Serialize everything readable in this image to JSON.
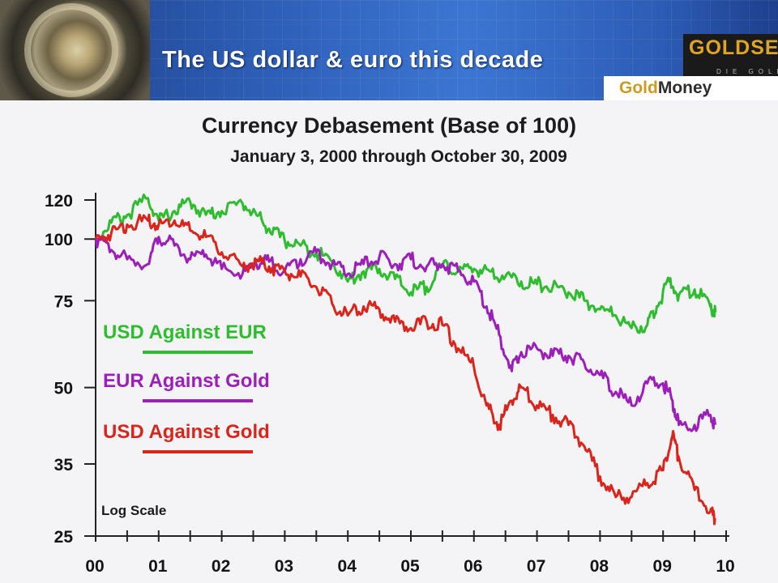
{
  "banner": {
    "title": "The US dollar & euro this decade",
    "logo_top": "GOLDSEEK",
    "logo_sub": "DIE GOLD",
    "logo_gold": "Gold",
    "logo_money": "Money"
  },
  "chart_data": {
    "type": "line",
    "title": "Currency Debasement (Base of 100)",
    "subtitle": "January 3, 2000 through October 30, 2009",
    "xlabel": "",
    "ylabel": "",
    "y_scale": "log",
    "annotation": "Log Scale",
    "xlim": [
      2000,
      2010
    ],
    "x_ticks": [
      2000,
      2001,
      2002,
      2003,
      2004,
      2005,
      2006,
      2007,
      2008,
      2009,
      2010
    ],
    "x_tick_labels": [
      "00",
      "01",
      "02",
      "03",
      "04",
      "05",
      "06",
      "07",
      "08",
      "09",
      "10"
    ],
    "y_ticks": [
      25,
      35,
      50,
      75,
      100,
      120
    ],
    "ylim": [
      25,
      128
    ],
    "grid": false,
    "legend_position": "left",
    "series": [
      {
        "name": "USD Against EUR",
        "color": "#2ebd2e",
        "x": [
          2000.0,
          2000.25,
          2000.5,
          2000.83,
          2001.0,
          2001.25,
          2001.5,
          2001.75,
          2002.0,
          2002.33,
          2002.55,
          2002.75,
          2003.0,
          2003.25,
          2003.5,
          2003.75,
          2004.0,
          2004.25,
          2004.5,
          2004.75,
          2005.0,
          2005.25,
          2005.5,
          2005.75,
          2006.0,
          2006.25,
          2006.5,
          2006.75,
          2007.0,
          2007.25,
          2007.5,
          2007.75,
          2008.0,
          2008.25,
          2008.5,
          2008.75,
          2008.9,
          2009.1,
          2009.25,
          2009.5,
          2009.75,
          2009.83
        ],
        "values": [
          100,
          108,
          112,
          121,
          109,
          114,
          119,
          112,
          114,
          118,
          112,
          105,
          99,
          97,
          94,
          90,
          82,
          86,
          87,
          83,
          78,
          80,
          88,
          86,
          87,
          86,
          84,
          82,
          81,
          80,
          78,
          75,
          72,
          70,
          66,
          67,
          73,
          82,
          77,
          79,
          73,
          71
        ]
      },
      {
        "name": "EUR Against Gold",
        "color": "#9b1fb8",
        "x": [
          2000.0,
          2000.25,
          2000.5,
          2000.83,
          2001.0,
          2001.25,
          2001.5,
          2001.75,
          2002.0,
          2002.33,
          2002.55,
          2002.75,
          2003.0,
          2003.25,
          2003.5,
          2003.75,
          2004.0,
          2004.25,
          2004.5,
          2004.75,
          2005.0,
          2005.25,
          2005.5,
          2005.75,
          2006.0,
          2006.2,
          2006.4,
          2006.6,
          2006.75,
          2007.0,
          2007.25,
          2007.5,
          2007.75,
          2008.0,
          2008.25,
          2008.5,
          2008.75,
          2009.0,
          2009.15,
          2009.25,
          2009.5,
          2009.75,
          2009.83
        ],
        "values": [
          100,
          95,
          91,
          89,
          101,
          97,
          91,
          93,
          87,
          85,
          89,
          90,
          86,
          91,
          94,
          89,
          85,
          89,
          92,
          89,
          91,
          88,
          89,
          86,
          82,
          73,
          64,
          54,
          59,
          60,
          58,
          58,
          56,
          53,
          49,
          46,
          51,
          51,
          47,
          42,
          42,
          44,
          42
        ]
      },
      {
        "name": "USD Against Gold",
        "color": "#d9251c",
        "x": [
          2000.0,
          2000.25,
          2000.5,
          2000.83,
          2001.0,
          2001.25,
          2001.5,
          2001.75,
          2002.0,
          2002.33,
          2002.55,
          2002.75,
          2003.0,
          2003.25,
          2003.5,
          2003.75,
          2004.0,
          2004.25,
          2004.5,
          2004.75,
          2005.0,
          2005.25,
          2005.5,
          2005.75,
          2006.0,
          2006.2,
          2006.4,
          2006.6,
          2006.75,
          2007.0,
          2007.25,
          2007.5,
          2007.75,
          2008.0,
          2008.25,
          2008.5,
          2008.75,
          2009.0,
          2009.15,
          2009.25,
          2009.5,
          2009.75,
          2009.83
        ],
        "values": [
          100,
          103,
          107,
          109,
          107,
          109,
          104,
          101,
          94,
          88,
          90,
          88,
          86,
          84,
          80,
          74,
          70,
          73,
          72,
          68,
          66,
          68,
          67,
          60,
          55,
          46,
          42,
          47,
          50,
          46,
          44,
          42,
          38,
          33,
          30,
          30,
          32,
          34,
          40,
          36,
          31,
          28,
          27
        ]
      }
    ]
  }
}
